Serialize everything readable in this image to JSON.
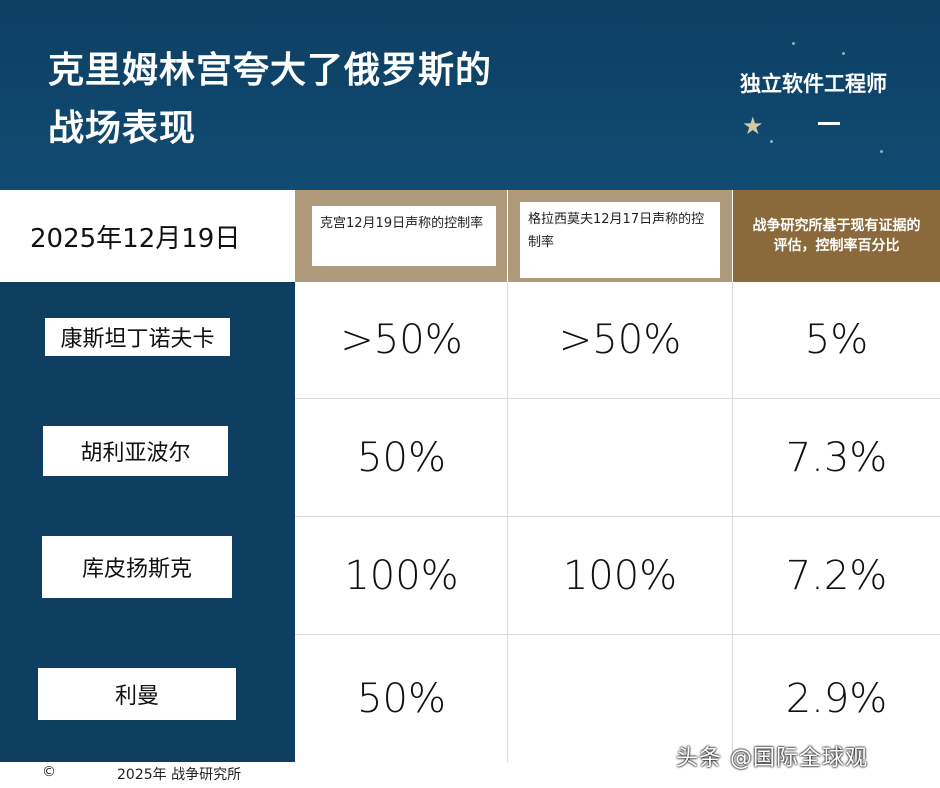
{
  "header": {
    "title": "克里姆林宫夸大了俄罗斯的\n战场表现",
    "brand": "独立软件工程师",
    "star_icon": "★"
  },
  "table": {
    "date": "2025年12月19日",
    "columns": [
      "克宫12月19日声称的控制率",
      "格拉西莫夫12月17日声称的控制率",
      "战争研究所基于现有证据的评估，控制率百分比"
    ],
    "rows": [
      {
        "label": "康斯坦丁诺夫卡",
        "values": [
          ">50%",
          ">50%",
          "5%"
        ]
      },
      {
        "label": "胡利亚波尔",
        "values": [
          "50%",
          "",
          "7.3%"
        ]
      },
      {
        "label": "库皮扬斯克",
        "values": [
          "100%",
          "100%",
          "7.2%"
        ]
      },
      {
        "label": "利曼",
        "values": [
          "50%",
          "",
          "2.9%"
        ]
      }
    ]
  },
  "footer": {
    "copyright": "©",
    "source": "2025年 战争研究所",
    "watermark": "头条 @国际全球观"
  },
  "colors": {
    "navy": "#0e3e60",
    "tan": "#b09a7c",
    "gold": "#8a6a3a"
  }
}
